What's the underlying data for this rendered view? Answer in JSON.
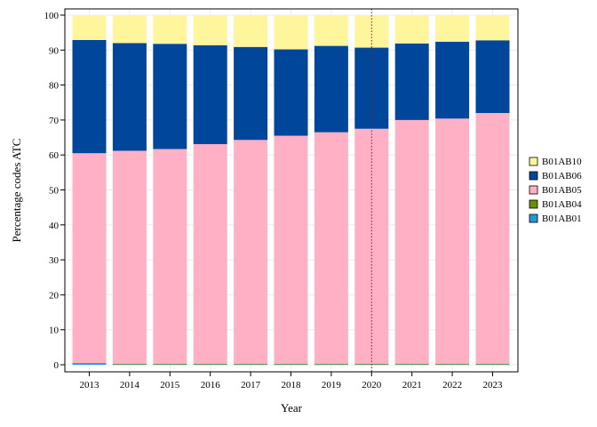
{
  "chart_data": {
    "type": "bar",
    "stacked": true,
    "title": "",
    "xlabel": "Year",
    "ylabel": "Percentage codes ATC",
    "ylim": [
      0,
      100
    ],
    "yticks": [
      0,
      10,
      20,
      30,
      40,
      50,
      60,
      70,
      80,
      90,
      100
    ],
    "categories": [
      "2013",
      "2014",
      "2015",
      "2016",
      "2017",
      "2018",
      "2019",
      "2020",
      "2021",
      "2022",
      "2023"
    ],
    "reference_line": {
      "x": "2020",
      "style": "dotted",
      "color": "#8b1a1a"
    },
    "grid": true,
    "legend_position": "right",
    "series": [
      {
        "name": "B01AB01",
        "color": "#1e9bd7",
        "values": [
          0.3,
          0.1,
          0.1,
          0.1,
          0.1,
          0.1,
          0.1,
          0.1,
          0.1,
          0.1,
          0.1
        ]
      },
      {
        "name": "B01AB04",
        "color": "#6b8e00",
        "values": [
          0.2,
          0.2,
          0.2,
          0.2,
          0.2,
          0.2,
          0.2,
          0.2,
          0.2,
          0.2,
          0.2
        ]
      },
      {
        "name": "B01AB05",
        "color": "#ffb0c4",
        "values": [
          60.0,
          60.9,
          61.4,
          62.8,
          64.0,
          65.2,
          66.2,
          67.2,
          69.7,
          70.1,
          71.7
        ]
      },
      {
        "name": "B01AB06",
        "color": "#00469b",
        "values": [
          32.4,
          30.8,
          30.1,
          28.3,
          26.6,
          24.7,
          24.7,
          23.2,
          21.9,
          22.0,
          20.8
        ]
      },
      {
        "name": "B01AB10",
        "color": "#fff59d",
        "values": [
          7.1,
          8.0,
          8.2,
          8.6,
          9.1,
          9.8,
          8.8,
          9.3,
          8.1,
          7.6,
          7.2
        ]
      }
    ],
    "legend_order": [
      "B01AB10",
      "B01AB06",
      "B01AB05",
      "B01AB04",
      "B01AB01"
    ]
  }
}
